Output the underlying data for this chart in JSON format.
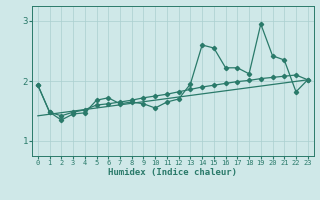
{
  "xlabel": "Humidex (Indice chaleur)",
  "xlim": [
    -0.5,
    23.5
  ],
  "ylim": [
    0.75,
    3.25
  ],
  "yticks": [
    1,
    2,
    3
  ],
  "xticks": [
    0,
    1,
    2,
    3,
    4,
    5,
    6,
    7,
    8,
    9,
    10,
    11,
    12,
    13,
    14,
    15,
    16,
    17,
    18,
    19,
    20,
    21,
    22,
    23
  ],
  "bg_color": "#cfe8e8",
  "grid_color": "#aacfcf",
  "line_color": "#2a7a6a",
  "trend_x": [
    0,
    23
  ],
  "trend_y": [
    1.42,
    2.02
  ],
  "line1_x": [
    0,
    1,
    2,
    3,
    4,
    5,
    6,
    7,
    8,
    9,
    10,
    11,
    12,
    13,
    14,
    15,
    16,
    17,
    18,
    19,
    20,
    21,
    22,
    23
  ],
  "line1_y": [
    1.93,
    1.48,
    1.35,
    1.45,
    1.47,
    1.68,
    1.72,
    1.62,
    1.65,
    1.62,
    1.55,
    1.65,
    1.7,
    1.95,
    2.6,
    2.55,
    2.22,
    2.22,
    2.12,
    2.95,
    2.42,
    2.35,
    1.82,
    2.02
  ],
  "line2_x": [
    0,
    1,
    2,
    3,
    4,
    5,
    6,
    7,
    8,
    9,
    10,
    11,
    12,
    13,
    14,
    15,
    16,
    17,
    18,
    19,
    20,
    21,
    22,
    23
  ],
  "line2_y": [
    1.93,
    1.48,
    1.42,
    1.48,
    1.52,
    1.6,
    1.62,
    1.65,
    1.68,
    1.72,
    1.75,
    1.78,
    1.82,
    1.86,
    1.9,
    1.93,
    1.96,
    1.99,
    2.01,
    2.04,
    2.06,
    2.08,
    2.1,
    2.02
  ]
}
